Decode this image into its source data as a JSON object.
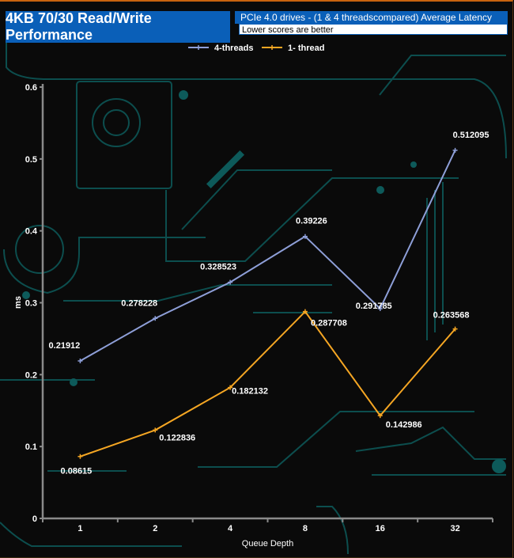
{
  "title": "4KB 70/30 Read/Write Performance",
  "subtitle": "PCIe 4.0 drives - (1 & 4 threadscompared)  Average Latency",
  "note": "Lower scores are better",
  "colors": {
    "accent": "#0a5fb8",
    "four_threads": "#8e9fd8",
    "one_thread": "#f5a623",
    "circuit": "#0d5a5a",
    "axis": "#8a8a8a"
  },
  "chart_data": {
    "type": "line",
    "xlabel": "Queue Depth",
    "ylabel": "ms",
    "categories": [
      "1",
      "2",
      "4",
      "8",
      "16",
      "32"
    ],
    "ylim": [
      0,
      0.6
    ],
    "yticks": [
      "0",
      "0.1",
      "0.2",
      "0.3",
      "0.4",
      "0.5",
      "0.6"
    ],
    "grid": false,
    "legend": "top-center",
    "series": [
      {
        "name": "4-threads",
        "values": [
          0.21912,
          0.278228,
          0.328523,
          0.39226,
          0.291785,
          0.512095
        ],
        "labels": [
          "0.21912",
          "0.278228",
          "0.328523",
          "0.39226",
          "0.291785",
          "0.512095"
        ]
      },
      {
        "name": "1- thread",
        "values": [
          0.08615,
          0.122836,
          0.182132,
          0.287708,
          0.142986,
          0.263568
        ],
        "labels": [
          "0.08615",
          "0.122836",
          "0.182132",
          "0.287708",
          "0.142986",
          "0.263568"
        ]
      }
    ]
  }
}
